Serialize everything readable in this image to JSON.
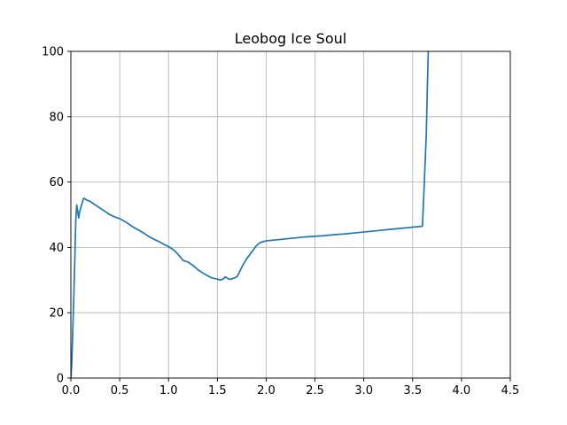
{
  "chart_data": {
    "type": "line",
    "title": "Leobog Ice Soul",
    "xlabel": "",
    "ylabel": "",
    "xlim": [
      0,
      4.5
    ],
    "ylim": [
      0,
      100
    ],
    "xticks": [
      0.0,
      0.5,
      1.0,
      1.5,
      2.0,
      2.5,
      3.0,
      3.5,
      4.0,
      4.5
    ],
    "xtick_labels": [
      "0.0",
      "0.5",
      "1.0",
      "1.5",
      "2.0",
      "2.5",
      "3.0",
      "3.5",
      "4.0",
      "4.5"
    ],
    "yticks": [
      0,
      20,
      40,
      60,
      80,
      100
    ],
    "ytick_labels": [
      "0",
      "20",
      "40",
      "60",
      "80",
      "100"
    ],
    "grid": true,
    "line_color": "#1f77b4",
    "grid_color": "#b0b0b0",
    "series": [
      {
        "x": [
          0.0,
          0.01,
          0.02,
          0.03,
          0.04,
          0.05,
          0.06,
          0.07,
          0.08,
          0.09,
          0.1,
          0.11,
          0.12,
          0.13,
          0.14,
          0.16,
          0.18,
          0.2,
          0.25,
          0.3,
          0.35,
          0.4,
          0.45,
          0.5,
          0.55,
          0.6,
          0.65,
          0.7,
          0.75,
          0.8,
          0.85,
          0.9,
          0.95,
          1.0,
          1.05,
          1.1,
          1.15,
          1.2,
          1.25,
          1.3,
          1.35,
          1.4,
          1.45,
          1.5,
          1.53,
          1.56,
          1.58,
          1.6,
          1.63,
          1.65,
          1.68,
          1.7,
          1.72,
          1.75,
          1.8,
          1.85,
          1.9,
          1.93,
          1.95,
          2.0,
          2.1,
          2.2,
          2.3,
          2.4,
          2.5,
          2.6,
          2.7,
          2.8,
          2.9,
          3.0,
          3.1,
          3.2,
          3.3,
          3.4,
          3.45,
          3.5,
          3.55,
          3.6,
          3.62,
          3.64,
          3.65,
          3.66
        ],
        "y": [
          0,
          5,
          15,
          25,
          36,
          48,
          53,
          51,
          49,
          51,
          52,
          53,
          54,
          55,
          55,
          54.5,
          54.3,
          54,
          53,
          52,
          51,
          50,
          49.3,
          48.8,
          48,
          47,
          46,
          45.2,
          44.3,
          43.3,
          42.5,
          41.8,
          41,
          40.2,
          39.3,
          37.8,
          36,
          35.5,
          34.5,
          33.2,
          32.2,
          31.3,
          30.6,
          30.3,
          30.0,
          30.3,
          31,
          30.6,
          30.2,
          30.4,
          30.7,
          31,
          32,
          34,
          36.5,
          38.5,
          40.5,
          41.3,
          41.6,
          42,
          42.3,
          42.6,
          42.9,
          43.2,
          43.4,
          43.6,
          43.9,
          44.1,
          44.4,
          44.7,
          45,
          45.3,
          45.6,
          45.9,
          46.0,
          46.2,
          46.3,
          46.5,
          60,
          75,
          88,
          100
        ]
      }
    ]
  }
}
